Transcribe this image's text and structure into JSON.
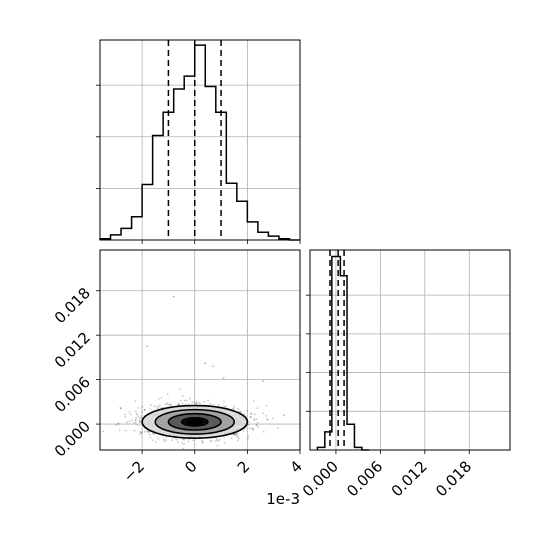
{
  "chart_data": {
    "type": "corner",
    "x_offset_label": "1e-3",
    "panels": [
      {
        "id": "marginal_param1",
        "type": "histogram",
        "x_unit_multiplier": 0.001,
        "xlim": [
          -3.6,
          4.0
        ],
        "bin_edges": [
          -3.6,
          -3.2,
          -2.8,
          -2.4,
          -2.0,
          -1.6,
          -1.2,
          -0.8,
          -0.4,
          0.0,
          0.4,
          0.8,
          1.2,
          1.6,
          2.0,
          2.4,
          2.8,
          3.2,
          3.6,
          4.0
        ],
        "counts": [
          1,
          4,
          9,
          18,
          43,
          81,
          99,
          117,
          127,
          151,
          119,
          99,
          44,
          30,
          14,
          6,
          3,
          1,
          0
        ],
        "ylim": [
          0,
          155
        ],
        "quantile_lines": [
          -1.0,
          0.0,
          1.0
        ],
        "y_ticks": [
          40,
          80,
          120
        ],
        "y_tick_labels_visible": false,
        "x_ticks": [
          -2,
          0,
          2,
          4
        ],
        "x_tick_labels_visible": false,
        "grid": true
      },
      {
        "id": "marginal_param2",
        "type": "histogram",
        "xlim": [
          -0.0035,
          0.0235
        ],
        "bin_edges": [
          -0.0015,
          0.0,
          0.0015,
          0.003,
          0.0045
        ],
        "counts": [
          14,
          137,
          122,
          11
        ],
        "step_cutoffs": [
          -0.0025,
          -0.0015,
          -0.00055,
          0.0006,
          0.0015,
          0.0025,
          0.0035,
          0.0045
        ],
        "step_counts": [
          2,
          14,
          150,
          135,
          20,
          2,
          0
        ],
        "ylim": [
          0,
          155
        ],
        "quantile_lines": [
          -0.0008,
          0.0003,
          0.0011
        ],
        "x_ticks": [
          0.0,
          0.006,
          0.012,
          0.018
        ],
        "x_tick_labels": [
          "0.000",
          "0.006",
          "0.012",
          "0.018"
        ],
        "y_ticks": [
          30,
          60,
          90,
          120
        ],
        "y_tick_labels_visible": false,
        "grid": true
      },
      {
        "id": "joint_param1_param2",
        "type": "2d-density",
        "x_unit_multiplier": 0.001,
        "xlim": [
          -3.6,
          4.0
        ],
        "ylim": [
          -0.0035,
          0.0235
        ],
        "x_ticks": [
          -2,
          0,
          2,
          4
        ],
        "x_tick_labels": [
          "−2",
          "0",
          "2",
          "4"
        ],
        "y_ticks": [
          0.0,
          0.006,
          0.012,
          0.018
        ],
        "y_tick_labels": [
          "0.000",
          "0.006",
          "0.012",
          "0.018"
        ],
        "center": [
          0.0,
          0.0003
        ],
        "sigma": [
          1.0,
          0.0011
        ],
        "contour_levels_sigma": [
          0.5,
          1.0,
          1.5,
          2.0
        ],
        "outlier_points": [
          [
            -1.8,
            0.0105
          ],
          [
            -0.8,
            0.0172
          ],
          [
            0.4,
            0.0082
          ],
          [
            0.7,
            0.0078
          ],
          [
            1.1,
            0.0062
          ],
          [
            2.6,
            0.0058
          ],
          [
            -2.8,
            0.0021
          ],
          [
            3.4,
            0.0012
          ]
        ],
        "grid": true
      }
    ]
  }
}
